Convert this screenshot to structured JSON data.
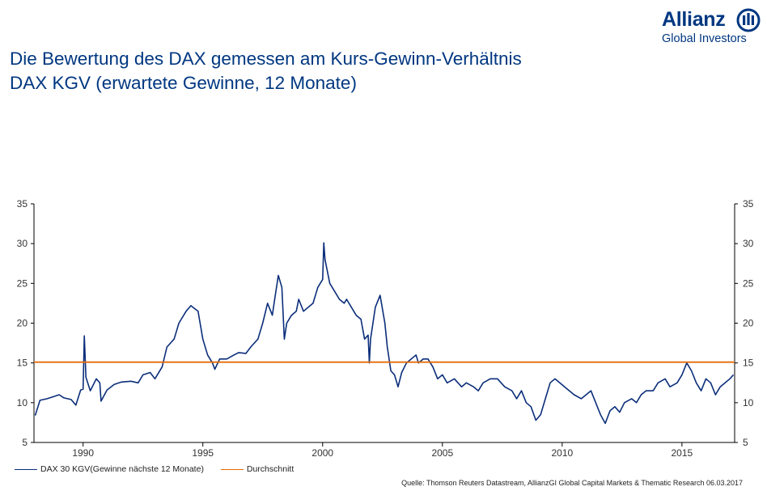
{
  "header": {
    "title_line1": "Die Bewertung des DAX gemessen am Kurs-Gewinn-Verhältnis",
    "title_line2": "DAX KGV (erwartete Gewinne, 12 Monate)"
  },
  "logo": {
    "brand": "Allianz",
    "subtitle": "Global Investors",
    "icon": "allianz-eagle-icon",
    "color": "#003781"
  },
  "source": "Quelle: Thomson Reuters Datastream, AllianzGI Global Capital Markets & Thematic Research 06.03.2017",
  "colors": {
    "series": "#0b2e7a",
    "average": "#e46c0a",
    "axis": "#000000"
  },
  "chart_data": {
    "type": "line",
    "title": "DAX KGV (erwartete Gewinne, 12 Monate)",
    "xlim": [
      1987.95,
      2017.2
    ],
    "ylim": [
      5,
      35
    ],
    "x_ticks": [
      "1990",
      "1995",
      "2000",
      "2005",
      "2010",
      "2015"
    ],
    "y_ticks": [
      "5",
      "10",
      "15",
      "20",
      "25",
      "30",
      "35"
    ],
    "secondary_y_axis": true,
    "grid": false,
    "legend_position": "bottom-left",
    "series": [
      {
        "name": "DAX 30 KGV(Gewinne nächste 12 Monate)",
        "color": "#0b2e7a",
        "points": [
          [
            1988.0,
            8.4
          ],
          [
            1988.2,
            10.3
          ],
          [
            1988.5,
            10.5
          ],
          [
            1988.8,
            10.8
          ],
          [
            1989.0,
            11.0
          ],
          [
            1989.2,
            10.6
          ],
          [
            1989.5,
            10.4
          ],
          [
            1989.7,
            9.7
          ],
          [
            1989.9,
            11.6
          ],
          [
            1990.0,
            11.7
          ],
          [
            1990.05,
            18.4
          ],
          [
            1990.12,
            13.2
          ],
          [
            1990.3,
            11.5
          ],
          [
            1990.55,
            13.0
          ],
          [
            1990.7,
            12.5
          ],
          [
            1990.75,
            10.2
          ],
          [
            1991.0,
            11.6
          ],
          [
            1991.3,
            12.3
          ],
          [
            1991.6,
            12.6
          ],
          [
            1992.0,
            12.7
          ],
          [
            1992.3,
            12.5
          ],
          [
            1992.5,
            13.5
          ],
          [
            1992.8,
            13.8
          ],
          [
            1993.0,
            13.0
          ],
          [
            1993.3,
            14.5
          ],
          [
            1993.5,
            17.0
          ],
          [
            1993.8,
            18.0
          ],
          [
            1994.0,
            20.0
          ],
          [
            1994.3,
            21.5
          ],
          [
            1994.5,
            22.2
          ],
          [
            1994.8,
            21.5
          ],
          [
            1995.0,
            18.0
          ],
          [
            1995.2,
            16.0
          ],
          [
            1995.4,
            15.0
          ],
          [
            1995.5,
            14.2
          ],
          [
            1995.7,
            15.5
          ],
          [
            1996.0,
            15.5
          ],
          [
            1996.3,
            16.0
          ],
          [
            1996.5,
            16.3
          ],
          [
            1996.8,
            16.2
          ],
          [
            1997.0,
            17.0
          ],
          [
            1997.3,
            18.0
          ],
          [
            1997.5,
            20.0
          ],
          [
            1997.7,
            22.5
          ],
          [
            1997.9,
            21.0
          ],
          [
            1998.0,
            23.0
          ],
          [
            1998.15,
            26.0
          ],
          [
            1998.3,
            24.5
          ],
          [
            1998.4,
            18.0
          ],
          [
            1998.5,
            20.0
          ],
          [
            1998.7,
            21.0
          ],
          [
            1998.9,
            21.5
          ],
          [
            1999.0,
            23.0
          ],
          [
            1999.2,
            21.5
          ],
          [
            1999.4,
            22.0
          ],
          [
            1999.6,
            22.5
          ],
          [
            1999.8,
            24.5
          ],
          [
            2000.0,
            25.5
          ],
          [
            2000.05,
            30.1
          ],
          [
            2000.1,
            28.0
          ],
          [
            2000.3,
            25.0
          ],
          [
            2000.5,
            24.0
          ],
          [
            2000.7,
            23.0
          ],
          [
            2000.9,
            22.5
          ],
          [
            2001.0,
            23.0
          ],
          [
            2001.2,
            22.0
          ],
          [
            2001.4,
            21.0
          ],
          [
            2001.6,
            20.5
          ],
          [
            2001.75,
            18.0
          ],
          [
            2001.9,
            18.5
          ],
          [
            2001.95,
            15.0
          ],
          [
            2002.0,
            18.0
          ],
          [
            2002.2,
            22.0
          ],
          [
            2002.4,
            23.5
          ],
          [
            2002.6,
            20.0
          ],
          [
            2002.7,
            17.0
          ],
          [
            2002.85,
            14.0
          ],
          [
            2003.0,
            13.5
          ],
          [
            2003.15,
            12.0
          ],
          [
            2003.3,
            13.8
          ],
          [
            2003.5,
            15.0
          ],
          [
            2003.7,
            15.5
          ],
          [
            2003.9,
            16.0
          ],
          [
            2004.0,
            15.0
          ],
          [
            2004.2,
            15.5
          ],
          [
            2004.4,
            15.5
          ],
          [
            2004.6,
            14.5
          ],
          [
            2004.8,
            13.0
          ],
          [
            2005.0,
            13.5
          ],
          [
            2005.2,
            12.5
          ],
          [
            2005.5,
            13.0
          ],
          [
            2005.8,
            12.0
          ],
          [
            2006.0,
            12.5
          ],
          [
            2006.3,
            12.0
          ],
          [
            2006.5,
            11.5
          ],
          [
            2006.7,
            12.5
          ],
          [
            2007.0,
            13.0
          ],
          [
            2007.3,
            13.0
          ],
          [
            2007.6,
            12.0
          ],
          [
            2007.9,
            11.5
          ],
          [
            2008.1,
            10.5
          ],
          [
            2008.3,
            11.5
          ],
          [
            2008.5,
            10.0
          ],
          [
            2008.7,
            9.5
          ],
          [
            2008.9,
            7.8
          ],
          [
            2009.1,
            8.5
          ],
          [
            2009.3,
            10.5
          ],
          [
            2009.5,
            12.5
          ],
          [
            2009.7,
            13.0
          ],
          [
            2009.9,
            12.5
          ],
          [
            2010.1,
            12.0
          ],
          [
            2010.3,
            11.5
          ],
          [
            2010.5,
            11.0
          ],
          [
            2010.8,
            10.5
          ],
          [
            2011.0,
            11.0
          ],
          [
            2011.2,
            11.5
          ],
          [
            2011.4,
            10.0
          ],
          [
            2011.6,
            8.5
          ],
          [
            2011.8,
            7.4
          ],
          [
            2012.0,
            9.0
          ],
          [
            2012.2,
            9.5
          ],
          [
            2012.4,
            8.8
          ],
          [
            2012.6,
            10.0
          ],
          [
            2012.9,
            10.5
          ],
          [
            2013.1,
            10.0
          ],
          [
            2013.3,
            11.0
          ],
          [
            2013.5,
            11.5
          ],
          [
            2013.8,
            11.5
          ],
          [
            2014.0,
            12.5
          ],
          [
            2014.3,
            13.0
          ],
          [
            2014.5,
            12.0
          ],
          [
            2014.8,
            12.5
          ],
          [
            2015.0,
            13.5
          ],
          [
            2015.2,
            15.0
          ],
          [
            2015.4,
            14.0
          ],
          [
            2015.6,
            12.5
          ],
          [
            2015.8,
            11.5
          ],
          [
            2016.0,
            13.0
          ],
          [
            2016.2,
            12.5
          ],
          [
            2016.4,
            11.0
          ],
          [
            2016.6,
            12.0
          ],
          [
            2016.8,
            12.5
          ],
          [
            2017.0,
            13.0
          ],
          [
            2017.15,
            13.5
          ]
        ]
      },
      {
        "name": "Durchschnitt",
        "color": "#e46c0a",
        "points": [
          [
            1987.95,
            15.1
          ],
          [
            2017.2,
            15.1
          ]
        ]
      }
    ]
  }
}
